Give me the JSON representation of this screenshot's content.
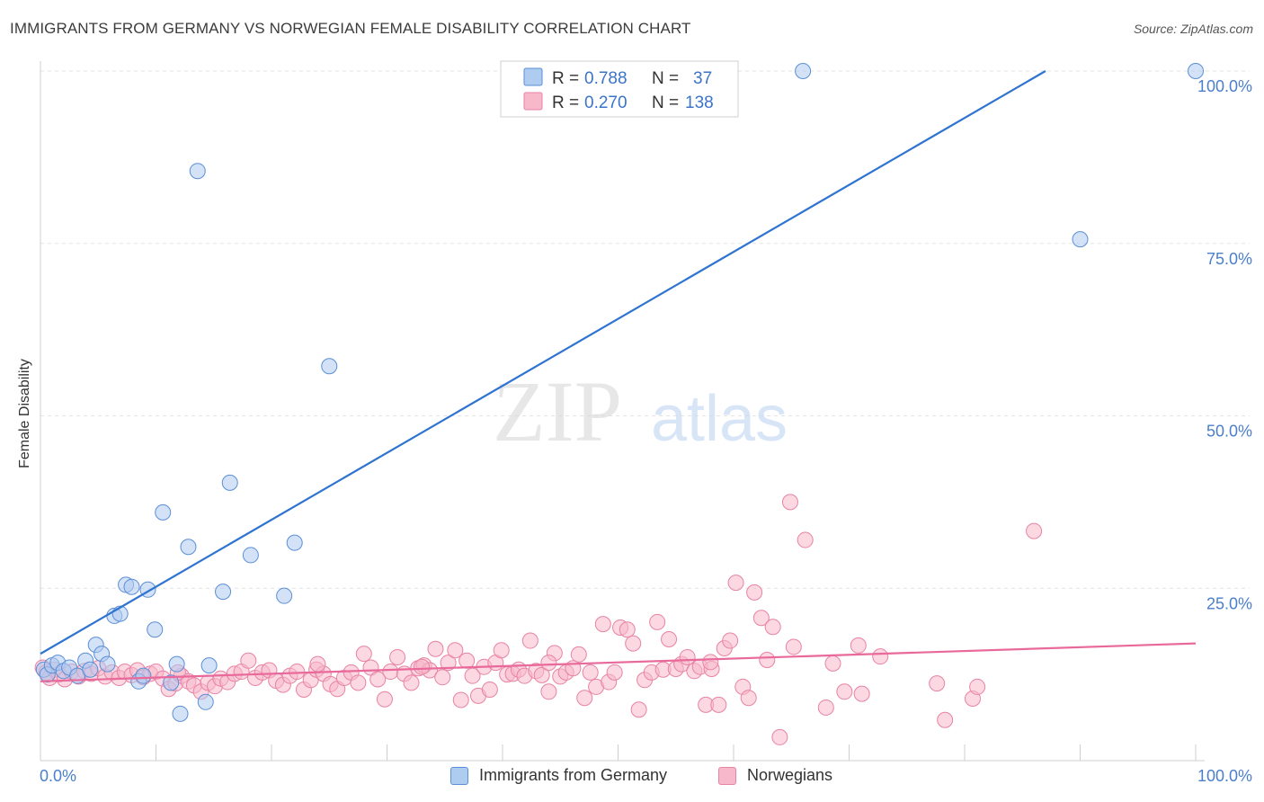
{
  "header": {
    "title": "IMMIGRANTS FROM GERMANY VS NORWEGIAN FEMALE DISABILITY CORRELATION CHART",
    "source": "Source: ZipAtlas.com"
  },
  "watermark": {
    "part1": "ZIP",
    "part2": "atlas"
  },
  "colors": {
    "blue_fill": "#aecbf0",
    "blue_stroke": "#5b8fd6",
    "blue_line": "#2f74d0",
    "pink_fill": "#f7b8cb",
    "pink_stroke": "#e883a4",
    "pink_line": "#e8699a",
    "tick_text": "#4a7fcb",
    "grid": "#e3e3e3"
  },
  "chart_data": {
    "type": "scatter",
    "ylabel": "Female Disability",
    "xlim": [
      0,
      100
    ],
    "ylim": [
      0,
      100
    ],
    "x_ticks": [
      "0.0%",
      "100.0%"
    ],
    "y_ticks": [
      {
        "value": 25,
        "label": "25.0%"
      },
      {
        "value": 50,
        "label": "50.0%"
      },
      {
        "value": 75,
        "label": "75.0%"
      },
      {
        "value": 100,
        "label": "100.0%"
      }
    ],
    "grid": true,
    "legend_position": "top-center",
    "stats": [
      {
        "r_label": "R =",
        "r": "0.788",
        "n_label": "N =",
        "n": "37"
      },
      {
        "r_label": "R =",
        "r": "0.270",
        "n_label": "N =",
        "n": "138"
      }
    ],
    "series": [
      {
        "name": "Immigrants from Germany",
        "color": "blue",
        "trendline": [
          [
            0,
            15.5
          ],
          [
            87,
            100
          ]
        ],
        "points": [
          [
            0.3,
            13.2
          ],
          [
            0.6,
            12.5
          ],
          [
            1.0,
            13.8
          ],
          [
            1.5,
            14.2
          ],
          [
            2.0,
            13.0
          ],
          [
            2.5,
            13.5
          ],
          [
            3.2,
            12.3
          ],
          [
            3.9,
            14.5
          ],
          [
            4.3,
            13.2
          ],
          [
            4.8,
            16.8
          ],
          [
            5.3,
            15.5
          ],
          [
            5.8,
            14.0
          ],
          [
            6.4,
            21.0
          ],
          [
            6.9,
            21.3
          ],
          [
            7.4,
            25.5
          ],
          [
            7.9,
            25.2
          ],
          [
            8.5,
            11.5
          ],
          [
            8.9,
            12.3
          ],
          [
            9.3,
            24.8
          ],
          [
            9.9,
            19.0
          ],
          [
            10.6,
            36.0
          ],
          [
            11.3,
            11.3
          ],
          [
            11.8,
            14.0
          ],
          [
            12.1,
            6.8
          ],
          [
            12.8,
            31.0
          ],
          [
            13.6,
            85.5
          ],
          [
            14.3,
            8.5
          ],
          [
            14.6,
            13.8
          ],
          [
            15.8,
            24.5
          ],
          [
            16.4,
            40.3
          ],
          [
            18.2,
            29.8
          ],
          [
            21.1,
            23.9
          ],
          [
            22.0,
            31.6
          ],
          [
            25.0,
            57.2
          ],
          [
            66.0,
            100.0
          ],
          [
            90.0,
            75.6
          ],
          [
            100.0,
            100.0
          ]
        ]
      },
      {
        "name": "Norwegians",
        "color": "pink",
        "trendline": [
          [
            0,
            11.5
          ],
          [
            100,
            17.0
          ]
        ],
        "points": [
          [
            0.2,
            13.5
          ],
          [
            0.5,
            12.8
          ],
          [
            0.8,
            12.0
          ],
          [
            1.2,
            13.2
          ],
          [
            1.6,
            12.5
          ],
          [
            2.1,
            11.8
          ],
          [
            2.7,
            12.9
          ],
          [
            3.3,
            12.2
          ],
          [
            3.8,
            13.0
          ],
          [
            4.4,
            12.6
          ],
          [
            5.0,
            13.4
          ],
          [
            5.6,
            12.2
          ],
          [
            6.2,
            12.8
          ],
          [
            6.8,
            12.0
          ],
          [
            7.3,
            12.9
          ],
          [
            7.9,
            12.4
          ],
          [
            8.4,
            13.1
          ],
          [
            8.9,
            12.1
          ],
          [
            9.5,
            12.6
          ],
          [
            10.0,
            12.9
          ],
          [
            10.6,
            11.9
          ],
          [
            11.1,
            10.4
          ],
          [
            11.7,
            11.2
          ],
          [
            12.2,
            12.3
          ],
          [
            12.8,
            11.5
          ],
          [
            13.3,
            10.9
          ],
          [
            13.9,
            10.0
          ],
          [
            14.5,
            11.3
          ],
          [
            15.1,
            10.8
          ],
          [
            15.6,
            11.9
          ],
          [
            16.2,
            11.4
          ],
          [
            16.8,
            12.6
          ],
          [
            17.4,
            12.9
          ],
          [
            18.0,
            14.5
          ],
          [
            18.6,
            12.0
          ],
          [
            19.2,
            12.8
          ],
          [
            19.8,
            13.1
          ],
          [
            20.4,
            11.6
          ],
          [
            21.0,
            11.0
          ],
          [
            21.6,
            12.3
          ],
          [
            22.2,
            12.9
          ],
          [
            22.8,
            10.3
          ],
          [
            23.4,
            11.7
          ],
          [
            23.9,
            13.2
          ],
          [
            24.5,
            12.6
          ],
          [
            25.1,
            11.1
          ],
          [
            25.7,
            10.4
          ],
          [
            26.3,
            12.0
          ],
          [
            26.9,
            12.8
          ],
          [
            27.5,
            11.3
          ],
          [
            28.0,
            15.5
          ],
          [
            28.6,
            13.5
          ],
          [
            29.2,
            11.8
          ],
          [
            29.8,
            8.9
          ],
          [
            30.3,
            12.9
          ],
          [
            30.9,
            15.0
          ],
          [
            31.5,
            12.6
          ],
          [
            32.1,
            11.3
          ],
          [
            32.7,
            13.4
          ],
          [
            33.2,
            13.8
          ],
          [
            33.7,
            13.1
          ],
          [
            34.2,
            16.2
          ],
          [
            34.8,
            12.1
          ],
          [
            35.3,
            14.2
          ],
          [
            35.9,
            16.0
          ],
          [
            36.4,
            8.8
          ],
          [
            36.9,
            14.5
          ],
          [
            37.4,
            12.3
          ],
          [
            37.9,
            9.4
          ],
          [
            38.4,
            13.6
          ],
          [
            38.9,
            10.3
          ],
          [
            39.4,
            14.2
          ],
          [
            39.9,
            16.0
          ],
          [
            40.4,
            12.5
          ],
          [
            40.9,
            12.6
          ],
          [
            41.4,
            13.2
          ],
          [
            41.9,
            12.3
          ],
          [
            42.4,
            17.4
          ],
          [
            42.9,
            13.0
          ],
          [
            43.4,
            12.4
          ],
          [
            44.0,
            10.0
          ],
          [
            44.5,
            15.6
          ],
          [
            45.0,
            12.2
          ],
          [
            45.5,
            12.8
          ],
          [
            46.1,
            13.4
          ],
          [
            46.6,
            15.4
          ],
          [
            47.1,
            9.1
          ],
          [
            47.6,
            12.8
          ],
          [
            48.1,
            10.7
          ],
          [
            48.7,
            19.8
          ],
          [
            49.2,
            11.4
          ],
          [
            49.7,
            12.8
          ],
          [
            50.2,
            19.3
          ],
          [
            50.8,
            19.0
          ],
          [
            51.3,
            17.0
          ],
          [
            51.8,
            7.4
          ],
          [
            52.3,
            11.7
          ],
          [
            52.9,
            12.8
          ],
          [
            53.4,
            20.1
          ],
          [
            53.9,
            13.2
          ],
          [
            54.4,
            17.6
          ],
          [
            55.0,
            13.3
          ],
          [
            55.5,
            14.0
          ],
          [
            56.0,
            15.0
          ],
          [
            56.6,
            13.0
          ],
          [
            57.1,
            13.6
          ],
          [
            57.6,
            8.1
          ],
          [
            58.1,
            13.3
          ],
          [
            58.7,
            8.1
          ],
          [
            59.2,
            16.3
          ],
          [
            59.7,
            17.4
          ],
          [
            60.2,
            25.8
          ],
          [
            60.8,
            10.7
          ],
          [
            61.3,
            9.1
          ],
          [
            61.8,
            24.4
          ],
          [
            62.4,
            20.7
          ],
          [
            62.9,
            14.6
          ],
          [
            63.4,
            19.4
          ],
          [
            64.0,
            3.4
          ],
          [
            64.9,
            37.5
          ],
          [
            65.2,
            16.5
          ],
          [
            66.2,
            32.0
          ],
          [
            68.0,
            7.7
          ],
          [
            68.6,
            14.1
          ],
          [
            69.6,
            10.0
          ],
          [
            70.8,
            16.7
          ],
          [
            71.1,
            9.7
          ],
          [
            72.7,
            15.1
          ],
          [
            77.6,
            11.2
          ],
          [
            78.3,
            5.9
          ],
          [
            80.7,
            9.0
          ],
          [
            81.1,
            10.7
          ],
          [
            86.0,
            33.3
          ],
          [
            11.9,
            12.8
          ],
          [
            24.0,
            14.0
          ],
          [
            33.0,
            13.6
          ],
          [
            44.0,
            14.2
          ],
          [
            58.0,
            14.3
          ]
        ]
      }
    ]
  },
  "bottom_legend": [
    "Immigrants from Germany",
    "Norwegians"
  ]
}
